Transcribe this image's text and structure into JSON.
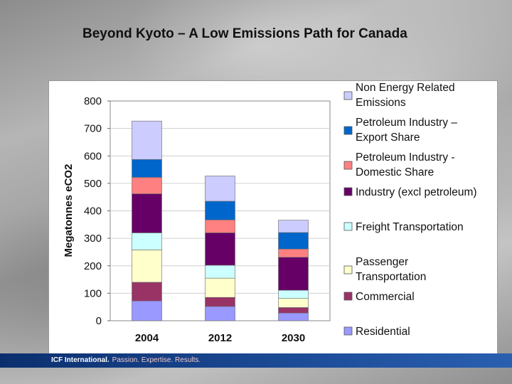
{
  "slide": {
    "title": "Beyond Kyoto – A Low Emissions Path for Canada"
  },
  "footer": {
    "brand": "ICF International.",
    "tagline": "Passion. Expertise. Results."
  },
  "chart_data": {
    "type": "bar",
    "stacked": true,
    "title": "",
    "xlabel": "",
    "ylabel": "Megatonnes eCO2",
    "ylim": [
      0,
      800
    ],
    "yticks": [
      0,
      100,
      200,
      300,
      400,
      500,
      600,
      700,
      800
    ],
    "categories": [
      "2004",
      "2012",
      "2030"
    ],
    "legend_position": "right",
    "series": [
      {
        "name": "Residential",
        "color": "#9999ff",
        "values": [
          72,
          52,
          28
        ]
      },
      {
        "name": "Commercial",
        "color": "#993366",
        "values": [
          68,
          33,
          20
        ]
      },
      {
        "name": "Passenger Transportation",
        "color": "#ffffcc",
        "values": [
          118,
          70,
          33
        ]
      },
      {
        "name": "Freight Transportation",
        "color": "#ccffff",
        "values": [
          62,
          47,
          30
        ]
      },
      {
        "name": "Industry (excl petroleum)",
        "color": "#660066",
        "values": [
          142,
          118,
          120
        ]
      },
      {
        "name": "Petroleum Industry - Domestic Share",
        "color": "#ff8080",
        "values": [
          60,
          47,
          30
        ]
      },
      {
        "name": "Petroleum Industry – Export Share",
        "color": "#0066cc",
        "values": [
          65,
          68,
          60
        ]
      },
      {
        "name": "Non Energy Related Emissions",
        "color": "#ccccff",
        "values": [
          140,
          92,
          45
        ]
      }
    ]
  },
  "legend_labels": [
    [
      "Non Energy Related",
      "Emissions"
    ],
    [
      "Petroleum Industry –",
      "Export Share"
    ],
    [
      "Petroleum Industry -",
      "Domestic Share"
    ],
    [
      "Industry (excl petroleum)"
    ],
    [
      "Freight Transportation"
    ],
    [
      "Passenger",
      "Transportation"
    ],
    [
      "Commercial"
    ],
    [
      "Residential"
    ]
  ]
}
